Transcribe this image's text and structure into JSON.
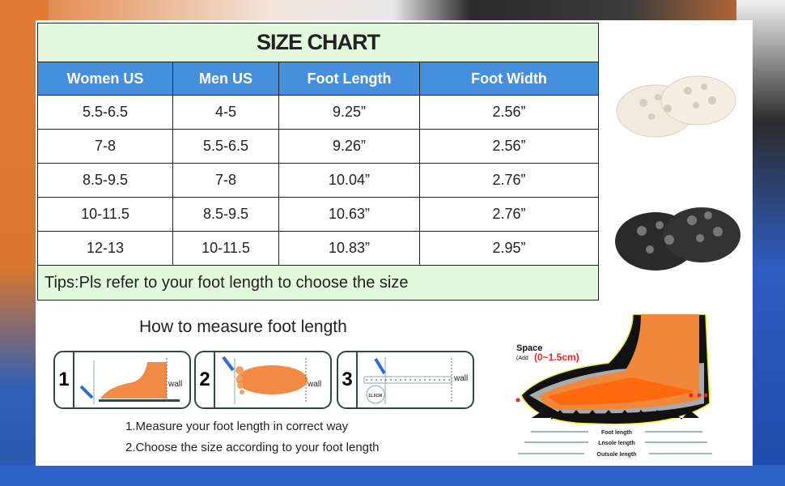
{
  "size_chart": {
    "title": "SIZE CHART",
    "columns": [
      "Women US",
      "Men US",
      "Foot Length",
      "Foot Width"
    ],
    "rows": [
      [
        "5.5-6.5",
        "4-5",
        "9.25”",
        "2.56”"
      ],
      [
        "7-8",
        "5.5-6.5",
        "9.26”",
        "2.56”"
      ],
      [
        "8.5-9.5",
        "7-8",
        "10.04”",
        "2.76”"
      ],
      [
        "10-11.5",
        "8.5-9.5",
        "10.63”",
        "2.76”"
      ],
      [
        "12-13",
        "10-11.5",
        "10.83”",
        "2.95”"
      ]
    ],
    "tips": "Tips:Pls refer to your foot length to choose the size",
    "header_color": "#458fdd",
    "title_color": "#e2f9dd"
  },
  "measure": {
    "title": "How to measure foot length",
    "steps": [
      {
        "number": "1",
        "label": "wall"
      },
      {
        "number": "2",
        "label": "wall"
      },
      {
        "number": "3",
        "label": "wall",
        "circle_label": "11.5CM"
      }
    ],
    "instructions": [
      "1.Measure your foot length in correct way",
      "2.Choose the size according to your foot length"
    ]
  },
  "diagram": {
    "space_label": "Space",
    "add_label": "(Add",
    "add_value": "(0~1.5cm)",
    "lengths": [
      "Foot length",
      "Lnsole length",
      "Outsole length"
    ]
  },
  "products": [
    {
      "color": "cream",
      "hex": "#f1ebdf"
    },
    {
      "color": "black",
      "hex": "#2a2a2a"
    }
  ]
}
